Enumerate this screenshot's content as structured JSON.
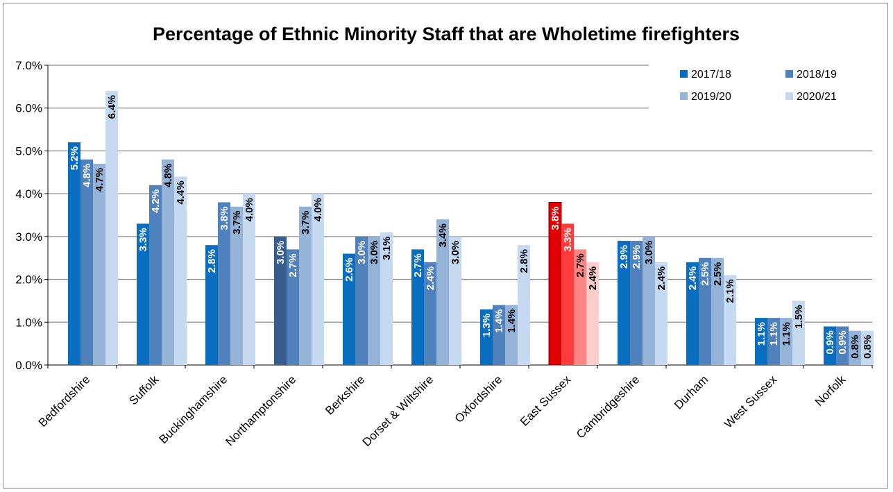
{
  "chart_data": {
    "type": "bar",
    "title": "Percentage of Ethnic Minority Staff that are Wholetime firefighters",
    "xlabel": "",
    "ylabel": "",
    "ylim": [
      0,
      7
    ],
    "yticks": [
      "0.0%",
      "1.0%",
      "2.0%",
      "3.0%",
      "4.0%",
      "5.0%",
      "6.0%",
      "7.0%"
    ],
    "grid": true,
    "legend_position": "top-right",
    "categories": [
      "Bedfordshire",
      "Suffolk",
      "Buckinghamshire",
      "Northamptonshire",
      "Berkshire",
      "Dorset & Wiltshire",
      "Oxfordshire",
      "East Sussex",
      "Cambridgeshire",
      "Durham",
      "West Sussex",
      "Norfolk"
    ],
    "series": [
      {
        "name": "2017/18",
        "color": "#0a6ec0",
        "values": [
          5.2,
          3.3,
          2.8,
          3.0,
          2.6,
          2.7,
          1.3,
          3.8,
          2.9,
          2.4,
          1.1,
          0.9
        ],
        "labels": [
          "5.2%",
          "3.3%",
          "2.8%",
          "3.0%",
          "2.6%",
          "2.7%",
          "1.3%",
          "3.8%",
          "2.9%",
          "2.4%",
          "1.1%",
          "0.9%"
        ]
      },
      {
        "name": "2018/19",
        "color": "#4f81bd",
        "values": [
          4.8,
          4.2,
          3.8,
          2.7,
          3.0,
          2.4,
          1.4,
          3.3,
          2.9,
          2.5,
          1.1,
          0.9
        ],
        "labels": [
          "4.8%",
          "4.2%",
          "3.8%",
          "2.7%",
          "3.0%",
          "2.4%",
          "1.4%",
          "3.3%",
          "2.9%",
          "2.5%",
          "1.1%",
          "0.9%"
        ]
      },
      {
        "name": "2019/20",
        "color": "#95b3d7",
        "values": [
          4.7,
          4.8,
          3.7,
          3.7,
          3.0,
          3.4,
          1.4,
          2.7,
          3.0,
          2.5,
          1.1,
          0.8
        ],
        "labels": [
          "4.7%",
          "4.8%",
          "3.7%",
          "3.7%",
          "3.0%",
          "3.4%",
          "1.4%",
          "2.7%",
          "3.0%",
          "2.5%",
          "1.1%",
          "0.8%"
        ]
      },
      {
        "name": "2020/21",
        "color": "#c5d9f1",
        "values": [
          6.4,
          4.4,
          4.0,
          4.0,
          3.1,
          3.0,
          2.8,
          2.4,
          2.4,
          2.1,
          1.5,
          0.8
        ],
        "labels": [
          "6.4%",
          "4.4%",
          "4.0%",
          "4.0%",
          "3.1%",
          "3.0%",
          "2.8%",
          "2.4%",
          "2.4%",
          "2.1%",
          "1.5%",
          "0.8%"
        ]
      }
    ],
    "highlight": {
      "category": "East Sussex",
      "colors": [
        "#e00000",
        "#ff3b3b",
        "#ff8585",
        "#ffcccc"
      ]
    },
    "alt_highlight": {
      "category": "Northamptonshire",
      "series_index": 0,
      "color": "#355d8f"
    }
  }
}
